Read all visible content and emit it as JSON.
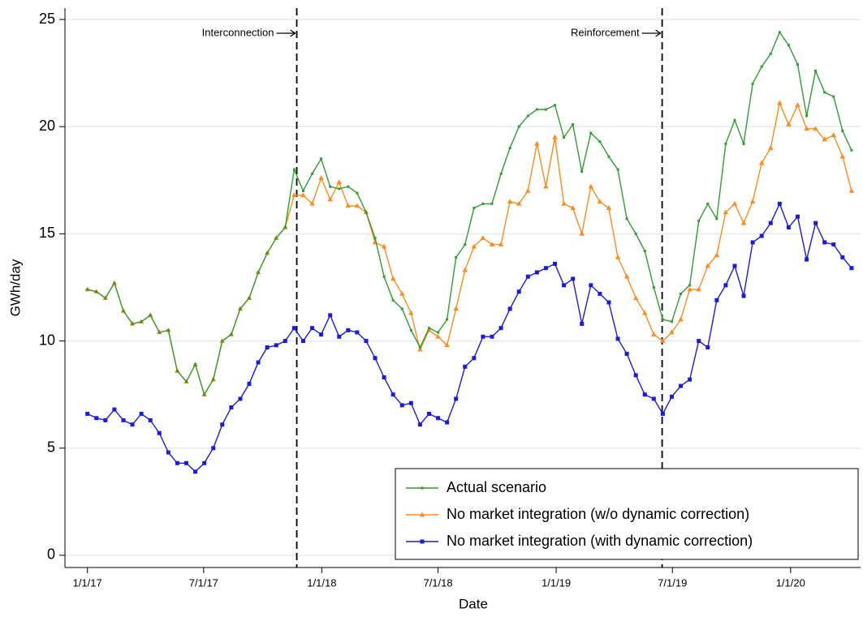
{
  "chart_data": {
    "type": "line",
    "xlabel": "Date",
    "ylabel": "GWh/day",
    "x": [
      "1/1/17",
      "1/15/17",
      "1/29/17",
      "2/12/17",
      "2/26/17",
      "3/12/17",
      "3/26/17",
      "4/9/17",
      "4/23/17",
      "5/7/17",
      "5/21/17",
      "6/4/17",
      "6/18/17",
      "7/2/17",
      "7/16/17",
      "7/30/17",
      "8/13/17",
      "8/27/17",
      "9/10/17",
      "9/24/17",
      "10/8/17",
      "10/22/17",
      "11/5/17",
      "11/19/17",
      "12/3/17",
      "12/17/17",
      "12/31/17",
      "1/14/18",
      "1/28/18",
      "2/11/18",
      "2/25/18",
      "3/11/18",
      "3/25/18",
      "4/8/18",
      "4/22/18",
      "5/6/18",
      "5/20/18",
      "6/3/18",
      "6/17/18",
      "7/1/18",
      "7/15/18",
      "7/29/18",
      "8/12/18",
      "8/26/18",
      "9/9/18",
      "9/23/18",
      "10/7/18",
      "10/21/18",
      "11/4/18",
      "11/18/18",
      "12/2/18",
      "12/16/18",
      "12/30/18",
      "1/13/19",
      "1/27/19",
      "2/10/19",
      "2/24/19",
      "3/10/19",
      "3/24/19",
      "4/7/19",
      "4/21/19",
      "5/5/19",
      "5/19/19",
      "6/2/19",
      "6/16/19",
      "6/30/19",
      "7/14/19",
      "7/28/19",
      "8/11/19",
      "8/25/19",
      "9/8/19",
      "9/22/19",
      "10/6/19",
      "10/20/19",
      "11/3/19",
      "11/17/19",
      "12/1/19",
      "12/15/19",
      "12/29/19",
      "1/12/20",
      "1/26/20",
      "2/9/20",
      "2/23/20",
      "3/8/20",
      "3/22/20",
      "4/5/20"
    ],
    "series": [
      {
        "name": "Actual scenario",
        "color": "#2e9e2e",
        "marker": "dot",
        "values": [
          12.4,
          12.3,
          12.0,
          12.7,
          11.4,
          10.8,
          10.9,
          11.2,
          10.4,
          10.5,
          8.6,
          8.1,
          8.9,
          7.5,
          8.2,
          10.0,
          10.3,
          11.5,
          12.0,
          13.2,
          14.1,
          14.8,
          15.3,
          18.0,
          17.0,
          17.8,
          18.5,
          17.2,
          17.1,
          17.2,
          16.9,
          16.0,
          14.8,
          13.0,
          11.9,
          11.5,
          10.5,
          9.7,
          10.6,
          10.4,
          11.0,
          13.9,
          14.5,
          16.2,
          16.4,
          16.4,
          17.8,
          19.0,
          20.0,
          20.5,
          20.8,
          20.8,
          21.0,
          19.5,
          20.1,
          17.9,
          19.7,
          19.3,
          18.6,
          18.0,
          15.7,
          15.0,
          14.2,
          12.5,
          11.0,
          10.9,
          12.2,
          12.6,
          15.6,
          16.4,
          15.7,
          19.2,
          20.3,
          19.2,
          22.0,
          22.8,
          23.4,
          24.4,
          23.8,
          22.9,
          20.5,
          22.6,
          21.6,
          21.4,
          19.8,
          18.9
        ]
      },
      {
        "name": "No market integration (w/o dynamic correction)",
        "color": "#ff8c1a",
        "marker": "triangle",
        "values": [
          12.4,
          12.3,
          12.0,
          12.7,
          11.4,
          10.8,
          10.9,
          11.2,
          10.4,
          10.5,
          8.6,
          8.1,
          8.9,
          7.5,
          8.2,
          10.0,
          10.3,
          11.5,
          12.0,
          13.2,
          14.1,
          14.8,
          15.3,
          16.8,
          16.8,
          16.4,
          17.6,
          16.6,
          17.4,
          16.3,
          16.3,
          16.0,
          14.6,
          14.4,
          12.9,
          12.2,
          11.3,
          9.6,
          10.5,
          10.2,
          9.8,
          11.5,
          13.3,
          14.4,
          14.8,
          14.5,
          14.5,
          16.5,
          16.4,
          17.0,
          19.2,
          17.2,
          19.5,
          16.4,
          16.2,
          15.0,
          17.2,
          16.5,
          16.2,
          13.9,
          13.0,
          12.0,
          11.3,
          10.3,
          10.0,
          10.4,
          11.0,
          12.4,
          12.4,
          13.5,
          14.0,
          16.0,
          16.4,
          15.5,
          16.5,
          18.3,
          19.0,
          21.1,
          20.1,
          21.0,
          19.9,
          19.9,
          19.4,
          19.6,
          18.6,
          17.0
        ]
      },
      {
        "name": "No market integration (with dynamic correction)",
        "color": "#1a1ae6",
        "marker": "square",
        "values": [
          6.6,
          6.4,
          6.3,
          6.8,
          6.3,
          6.1,
          6.6,
          6.3,
          5.7,
          4.8,
          4.3,
          4.3,
          3.9,
          4.3,
          5.0,
          6.1,
          6.9,
          7.3,
          8.0,
          9.0,
          9.7,
          9.8,
          10.0,
          10.6,
          10.0,
          10.6,
          10.3,
          11.2,
          10.2,
          10.5,
          10.4,
          10.0,
          9.2,
          8.3,
          7.5,
          7.0,
          7.1,
          6.1,
          6.6,
          6.4,
          6.2,
          7.3,
          8.8,
          9.2,
          10.2,
          10.2,
          10.6,
          11.5,
          12.3,
          13.0,
          13.2,
          13.4,
          13.6,
          12.6,
          12.9,
          10.8,
          12.6,
          12.2,
          11.8,
          10.1,
          9.4,
          8.4,
          7.5,
          7.3,
          6.6,
          7.4,
          7.9,
          8.2,
          10.0,
          9.7,
          11.9,
          12.6,
          13.5,
          12.1,
          14.6,
          14.9,
          15.5,
          16.4,
          15.3,
          15.8,
          13.8,
          15.5,
          14.6,
          14.5,
          13.9,
          13.4
        ]
      }
    ],
    "xlim": [
      "11/27/16",
      "4/19/20"
    ],
    "xticks": [
      "1/1/17",
      "7/1/17",
      "1/1/18",
      "7/1/18",
      "1/1/19",
      "7/1/19",
      "1/1/20"
    ],
    "ylim": [
      -0.57,
      25.53
    ],
    "yticks": [
      0,
      5,
      10,
      15,
      20,
      25
    ],
    "grid": true,
    "legend": "lower right",
    "vlines": [
      {
        "x": "11/23/17",
        "label": "Interconnection"
      },
      {
        "x": "6/15/19",
        "label": "Reinforcement"
      }
    ]
  }
}
